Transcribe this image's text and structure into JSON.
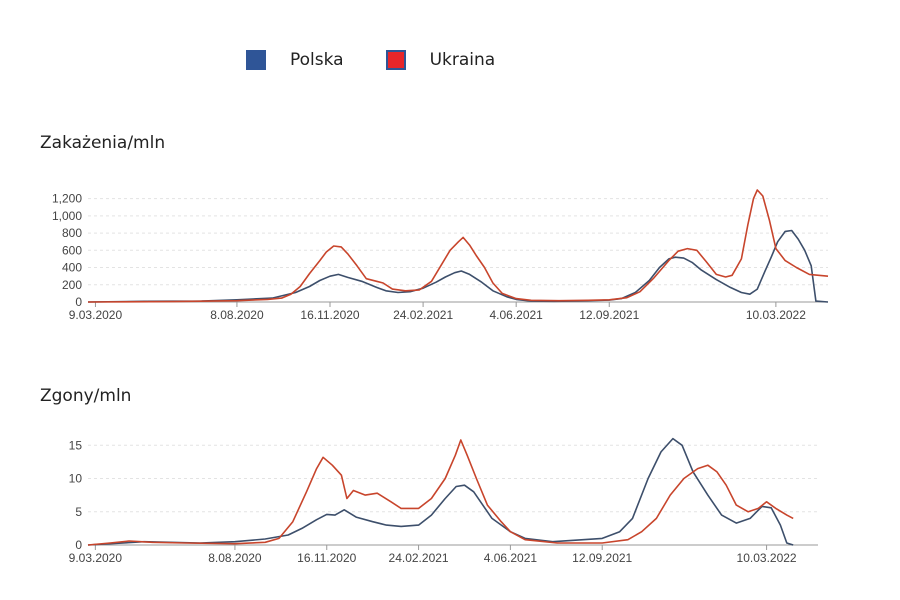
{
  "legend": [
    {
      "name": "Polska",
      "color": "#2f5597",
      "border": "#2f5597"
    },
    {
      "name": "Ukraina",
      "color": "#e8262b",
      "border": "#2f5597"
    }
  ],
  "chart_data": [
    {
      "type": "line",
      "title": "Zakażenia/mln",
      "x_ticks": [
        "9.03.2020",
        "8.08.2020",
        "16.11.2020",
        "24.02.2021",
        "4.06.2021",
        "12.09.2021",
        "10.03.2022"
      ],
      "x_range": [
        "2020-03-01",
        "2022-05-05"
      ],
      "y_ticks": [
        0,
        200,
        400,
        600,
        800,
        1000,
        1200
      ],
      "y_tick_labels": [
        "0",
        "200",
        "400",
        "600",
        "800",
        "1,000",
        "1,200"
      ],
      "ylim": [
        0,
        1300
      ],
      "grid": true,
      "series": [
        {
          "name": "Polska",
          "color": "#3d4f6b",
          "points": [
            [
              "2020-03-01",
              0
            ],
            [
              "2020-05-01",
              8
            ],
            [
              "2020-07-01",
              12
            ],
            [
              "2020-08-08",
              25
            ],
            [
              "2020-09-15",
              45
            ],
            [
              "2020-10-10",
              110
            ],
            [
              "2020-10-25",
              180
            ],
            [
              "2020-11-05",
              250
            ],
            [
              "2020-11-16",
              300
            ],
            [
              "2020-11-25",
              320
            ],
            [
              "2020-12-05",
              285
            ],
            [
              "2020-12-20",
              240
            ],
            [
              "2021-01-05",
              170
            ],
            [
              "2021-01-15",
              130
            ],
            [
              "2021-01-28",
              110
            ],
            [
              "2021-02-10",
              120
            ],
            [
              "2021-02-24",
              160
            ],
            [
              "2021-03-10",
              230
            ],
            [
              "2021-03-20",
              290
            ],
            [
              "2021-03-30",
              340
            ],
            [
              "2021-04-06",
              360
            ],
            [
              "2021-04-15",
              320
            ],
            [
              "2021-04-28",
              230
            ],
            [
              "2021-05-10",
              130
            ],
            [
              "2021-05-25",
              60
            ],
            [
              "2021-06-04",
              30
            ],
            [
              "2021-06-20",
              10
            ],
            [
              "2021-07-15",
              8
            ],
            [
              "2021-08-10",
              12
            ],
            [
              "2021-09-12",
              22
            ],
            [
              "2021-09-25",
              40
            ],
            [
              "2021-10-10",
              110
            ],
            [
              "2021-10-25",
              250
            ],
            [
              "2021-11-05",
              400
            ],
            [
              "2021-11-15",
              500
            ],
            [
              "2021-11-22",
              520
            ],
            [
              "2021-12-01",
              510
            ],
            [
              "2021-12-10",
              460
            ],
            [
              "2021-12-20",
              370
            ],
            [
              "2022-01-05",
              260
            ],
            [
              "2022-01-20",
              170
            ],
            [
              "2022-02-01",
              110
            ],
            [
              "2022-02-10",
              90
            ],
            [
              "2022-02-18",
              150
            ],
            [
              "2022-02-26",
              350
            ],
            [
              "2022-03-05",
              520
            ],
            [
              "2022-03-12",
              700
            ],
            [
              "2022-03-20",
              820
            ],
            [
              "2022-03-27",
              830
            ],
            [
              "2022-04-03",
              730
            ],
            [
              "2022-04-10",
              600
            ],
            [
              "2022-04-17",
              420
            ],
            [
              "2022-04-22",
              10
            ],
            [
              "2022-05-05",
              0
            ]
          ]
        },
        {
          "name": "Ukraina",
          "color": "#c8452c",
          "points": [
            [
              "2020-03-01",
              0
            ],
            [
              "2020-06-01",
              5
            ],
            [
              "2020-08-08",
              15
            ],
            [
              "2020-09-10",
              30
            ],
            [
              "2020-09-25",
              45
            ],
            [
              "2020-10-05",
              90
            ],
            [
              "2020-10-15",
              180
            ],
            [
              "2020-10-25",
              330
            ],
            [
              "2020-11-05",
              480
            ],
            [
              "2020-11-12",
              580
            ],
            [
              "2020-11-20",
              650
            ],
            [
              "2020-11-28",
              640
            ],
            [
              "2020-12-05",
              560
            ],
            [
              "2020-12-15",
              420
            ],
            [
              "2020-12-25",
              270
            ],
            [
              "2021-01-05",
              240
            ],
            [
              "2021-01-12",
              220
            ],
            [
              "2021-01-22",
              150
            ],
            [
              "2021-02-05",
              130
            ],
            [
              "2021-02-20",
              140
            ],
            [
              "2021-03-05",
              240
            ],
            [
              "2021-03-15",
              420
            ],
            [
              "2021-03-25",
              600
            ],
            [
              "2021-04-03",
              700
            ],
            [
              "2021-04-08",
              750
            ],
            [
              "2021-04-15",
              660
            ],
            [
              "2021-04-22",
              540
            ],
            [
              "2021-05-01",
              400
            ],
            [
              "2021-05-10",
              220
            ],
            [
              "2021-05-20",
              100
            ],
            [
              "2021-06-04",
              40
            ],
            [
              "2021-06-20",
              20
            ],
            [
              "2021-07-20",
              15
            ],
            [
              "2021-08-20",
              20
            ],
            [
              "2021-09-12",
              25
            ],
            [
              "2021-10-01",
              50
            ],
            [
              "2021-10-15",
              120
            ],
            [
              "2021-10-30",
              280
            ],
            [
              "2021-11-15",
              480
            ],
            [
              "2021-11-25",
              590
            ],
            [
              "2021-12-05",
              620
            ],
            [
              "2021-12-15",
              600
            ],
            [
              "2021-12-25",
              470
            ],
            [
              "2022-01-05",
              320
            ],
            [
              "2022-01-15",
              290
            ],
            [
              "2022-01-22",
              310
            ],
            [
              "2022-02-01",
              500
            ],
            [
              "2022-02-08",
              900
            ],
            [
              "2022-02-14",
              1200
            ],
            [
              "2022-02-18",
              1300
            ],
            [
              "2022-02-24",
              1230
            ],
            [
              "2022-03-03",
              950
            ],
            [
              "2022-03-10",
              620
            ],
            [
              "2022-03-20",
              480
            ],
            [
              "2022-04-01",
              400
            ],
            [
              "2022-04-15",
              320
            ],
            [
              "2022-05-05",
              300
            ]
          ]
        }
      ]
    },
    {
      "type": "line",
      "title": "Zgony/mln",
      "x_ticks": [
        "9.03.2020",
        "8.08.2020",
        "16.11.2020",
        "24.02.2021",
        "4.06.2021",
        "12.09.2021",
        "10.03.2022"
      ],
      "x_range": [
        "2020-03-01",
        "2022-05-05"
      ],
      "y_ticks": [
        0,
        5,
        10,
        15
      ],
      "y_tick_labels": [
        "0",
        "5",
        "10",
        "15"
      ],
      "ylim": [
        0,
        17
      ],
      "grid": true,
      "series": [
        {
          "name": "Polska",
          "color": "#3d4f6b",
          "points": [
            [
              "2020-03-01",
              0
            ],
            [
              "2020-05-01",
              0.5
            ],
            [
              "2020-07-01",
              0.3
            ],
            [
              "2020-08-08",
              0.5
            ],
            [
              "2020-09-10",
              0.9
            ],
            [
              "2020-10-05",
              1.5
            ],
            [
              "2020-10-20",
              2.5
            ],
            [
              "2020-11-05",
              3.8
            ],
            [
              "2020-11-16",
              4.6
            ],
            [
              "2020-11-25",
              4.5
            ],
            [
              "2020-12-05",
              5.3
            ],
            [
              "2020-12-18",
              4.2
            ],
            [
              "2021-01-05",
              3.5
            ],
            [
              "2021-01-20",
              3.0
            ],
            [
              "2021-02-05",
              2.8
            ],
            [
              "2021-02-24",
              3.0
            ],
            [
              "2021-03-10",
              4.5
            ],
            [
              "2021-03-25",
              7.0
            ],
            [
              "2021-04-06",
              8.8
            ],
            [
              "2021-04-15",
              9.0
            ],
            [
              "2021-04-25",
              8.0
            ],
            [
              "2021-05-05",
              6.0
            ],
            [
              "2021-05-15",
              4.0
            ],
            [
              "2021-06-04",
              2.0
            ],
            [
              "2021-06-20",
              1.0
            ],
            [
              "2021-07-20",
              0.5
            ],
            [
              "2021-09-12",
              1.0
            ],
            [
              "2021-10-01",
              2.0
            ],
            [
              "2021-10-15",
              4.0
            ],
            [
              "2021-11-01",
              10.0
            ],
            [
              "2021-11-15",
              14.0
            ],
            [
              "2021-11-28",
              16.0
            ],
            [
              "2021-12-08",
              15.0
            ],
            [
              "2021-12-20",
              11.0
            ],
            [
              "2022-01-05",
              7.5
            ],
            [
              "2022-01-20",
              4.5
            ],
            [
              "2022-02-05",
              3.3
            ],
            [
              "2022-02-20",
              4.0
            ],
            [
              "2022-03-05",
              5.8
            ],
            [
              "2022-03-15",
              5.6
            ],
            [
              "2022-03-25",
              3.0
            ],
            [
              "2022-04-01",
              0.3
            ],
            [
              "2022-04-08",
              0
            ]
          ]
        },
        {
          "name": "Ukraina",
          "color": "#c8452c",
          "points": [
            [
              "2020-03-01",
              0
            ],
            [
              "2020-03-25",
              0.3
            ],
            [
              "2020-04-15",
              0.6
            ],
            [
              "2020-05-10",
              0.4
            ],
            [
              "2020-06-15",
              0.3
            ],
            [
              "2020-08-08",
              0.2
            ],
            [
              "2020-09-10",
              0.4
            ],
            [
              "2020-09-25",
              1.0
            ],
            [
              "2020-10-10",
              3.5
            ],
            [
              "2020-10-25",
              8.0
            ],
            [
              "2020-11-05",
              11.5
            ],
            [
              "2020-11-12",
              13.2
            ],
            [
              "2020-11-22",
              12.0
            ],
            [
              "2020-12-02",
              10.5
            ],
            [
              "2020-12-08",
              7.0
            ],
            [
              "2020-12-15",
              8.2
            ],
            [
              "2020-12-28",
              7.5
            ],
            [
              "2021-01-10",
              7.8
            ],
            [
              "2021-01-25",
              6.5
            ],
            [
              "2021-02-05",
              5.5
            ],
            [
              "2021-02-24",
              5.5
            ],
            [
              "2021-03-10",
              7.0
            ],
            [
              "2021-03-25",
              10.0
            ],
            [
              "2021-04-05",
              13.5
            ],
            [
              "2021-04-11",
              15.8
            ],
            [
              "2021-04-18",
              13.5
            ],
            [
              "2021-04-28",
              10.0
            ],
            [
              "2021-05-10",
              6.0
            ],
            [
              "2021-05-25",
              3.5
            ],
            [
              "2021-06-04",
              2.0
            ],
            [
              "2021-06-20",
              0.8
            ],
            [
              "2021-07-25",
              0.3
            ],
            [
              "2021-09-12",
              0.3
            ],
            [
              "2021-10-10",
              0.8
            ],
            [
              "2021-10-25",
              2.0
            ],
            [
              "2021-11-10",
              4.0
            ],
            [
              "2021-11-25",
              7.5
            ],
            [
              "2021-12-10",
              10.0
            ],
            [
              "2021-12-25",
              11.5
            ],
            [
              "2022-01-05",
              12.0
            ],
            [
              "2022-01-15",
              11.0
            ],
            [
              "2022-01-25",
              9.0
            ],
            [
              "2022-02-05",
              6.0
            ],
            [
              "2022-02-18",
              5.0
            ],
            [
              "2022-03-01",
              5.5
            ],
            [
              "2022-03-10",
              6.5
            ],
            [
              "2022-03-20",
              5.5
            ],
            [
              "2022-04-01",
              4.5
            ],
            [
              "2022-04-08",
              4.0
            ]
          ]
        }
      ]
    }
  ]
}
